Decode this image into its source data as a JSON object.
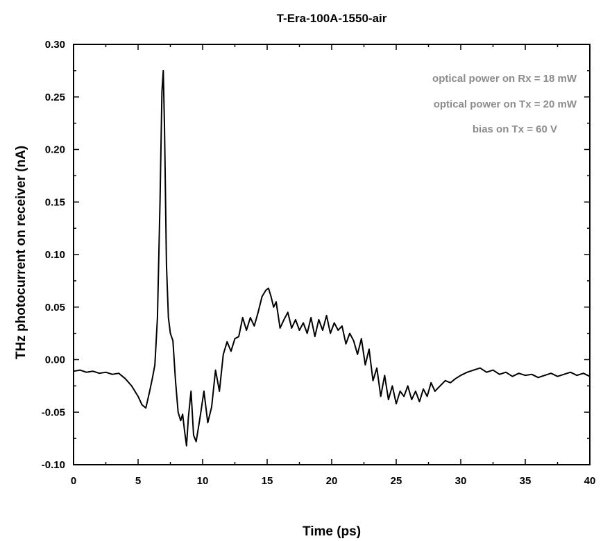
{
  "chart_data": {
    "type": "line",
    "title": "T-Era-100A-1550-air",
    "xlabel": "Time (ps)",
    "ylabel": "THz photocurrent on receiver (nA)",
    "xlim": [
      0,
      40
    ],
    "ylim": [
      -0.1,
      0.3
    ],
    "x_ticks": [
      "0",
      "5",
      "10",
      "15",
      "20",
      "25",
      "30",
      "35",
      "40"
    ],
    "y_ticks": [
      "-0.10",
      "-0.05",
      "0.00",
      "0.05",
      "0.10",
      "0.15",
      "0.20",
      "0.25",
      "0.30"
    ],
    "grid": false,
    "legend": "none",
    "annotations": [
      "optical power on Rx = 18 mW",
      "optical power on Tx = 20 mW",
      "bias on Tx = 60 V"
    ],
    "annotation_color": "#8c8c8c",
    "line_color": "#000000",
    "series": [
      {
        "x": [
          0.0,
          0.5,
          1.0,
          1.5,
          2.0,
          2.5,
          3.0,
          3.5,
          4.0,
          4.5,
          5.0,
          5.3,
          5.6,
          5.9,
          6.1,
          6.3,
          6.5,
          6.7,
          6.85,
          6.95,
          7.05,
          7.2,
          7.35,
          7.5,
          7.7,
          7.9,
          8.1,
          8.3,
          8.45,
          8.6,
          8.75,
          8.9,
          9.1,
          9.3,
          9.5,
          9.8,
          10.1,
          10.4,
          10.7,
          11.0,
          11.3,
          11.6,
          11.9,
          12.2,
          12.5,
          12.8,
          13.1,
          13.4,
          13.7,
          14.0,
          14.3,
          14.6,
          14.9,
          15.1,
          15.3,
          15.5,
          15.7,
          16.0,
          16.3,
          16.6,
          16.9,
          17.2,
          17.5,
          17.8,
          18.1,
          18.4,
          18.7,
          19.0,
          19.3,
          19.6,
          19.9,
          20.2,
          20.5,
          20.8,
          21.1,
          21.4,
          21.7,
          22.0,
          22.3,
          22.6,
          22.9,
          23.2,
          23.5,
          23.8,
          24.1,
          24.4,
          24.7,
          25.0,
          25.3,
          25.6,
          25.9,
          26.2,
          26.5,
          26.8,
          27.1,
          27.4,
          27.7,
          28.0,
          28.4,
          28.8,
          29.2,
          29.6,
          30.0,
          30.5,
          31.0,
          31.5,
          32.0,
          32.5,
          33.0,
          33.5,
          34.0,
          34.5,
          35.0,
          35.5,
          36.0,
          36.5,
          37.0,
          37.5,
          38.0,
          38.5,
          39.0,
          39.5,
          40.0
        ],
        "y": [
          -0.011,
          -0.01,
          -0.012,
          -0.011,
          -0.013,
          -0.012,
          -0.014,
          -0.013,
          -0.018,
          -0.025,
          -0.035,
          -0.043,
          -0.046,
          -0.03,
          -0.018,
          -0.005,
          0.04,
          0.15,
          0.255,
          0.275,
          0.22,
          0.09,
          0.04,
          0.025,
          0.018,
          -0.02,
          -0.05,
          -0.058,
          -0.052,
          -0.068,
          -0.082,
          -0.055,
          -0.03,
          -0.072,
          -0.078,
          -0.055,
          -0.03,
          -0.06,
          -0.045,
          -0.01,
          -0.03,
          0.005,
          0.017,
          0.008,
          0.02,
          0.022,
          0.04,
          0.028,
          0.04,
          0.032,
          0.045,
          0.06,
          0.066,
          0.068,
          0.06,
          0.05,
          0.055,
          0.03,
          0.038,
          0.045,
          0.03,
          0.038,
          0.028,
          0.035,
          0.025,
          0.04,
          0.022,
          0.038,
          0.028,
          0.042,
          0.025,
          0.035,
          0.028,
          0.032,
          0.015,
          0.025,
          0.018,
          0.005,
          0.02,
          -0.005,
          0.01,
          -0.02,
          -0.008,
          -0.035,
          -0.015,
          -0.038,
          -0.025,
          -0.042,
          -0.03,
          -0.035,
          -0.025,
          -0.038,
          -0.03,
          -0.04,
          -0.028,
          -0.035,
          -0.022,
          -0.03,
          -0.025,
          -0.02,
          -0.022,
          -0.018,
          -0.015,
          -0.012,
          -0.01,
          -0.008,
          -0.012,
          -0.01,
          -0.014,
          -0.012,
          -0.016,
          -0.013,
          -0.015,
          -0.014,
          -0.017,
          -0.015,
          -0.013,
          -0.016,
          -0.014,
          -0.012,
          -0.015,
          -0.013,
          -0.016
        ]
      }
    ]
  }
}
